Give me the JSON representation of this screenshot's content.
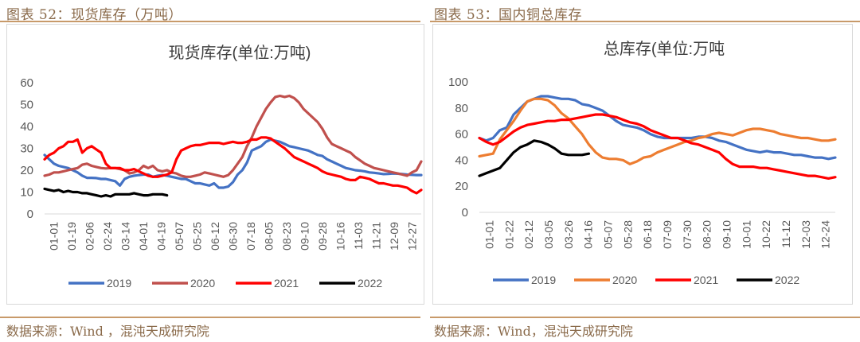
{
  "left": {
    "caption": "图表 52：现货库存（万吨）",
    "source": "数据来源：Wind ，混沌天成研究院",
    "chart_data": {
      "type": "line",
      "title": "现货库存(单位:万吨)",
      "ylim": [
        0,
        60
      ],
      "yticks": [
        0,
        10,
        20,
        30,
        40,
        50,
        60
      ],
      "x_labels": [
        "01-01",
        "01-19",
        "02-06",
        "02-24",
        "03-14",
        "04-01",
        "04-19",
        "05-07",
        "05-25",
        "06-12",
        "06-30",
        "07-18",
        "08-05",
        "08-23",
        "09-10",
        "09-28",
        "10-16",
        "11-03",
        "11-21",
        "12-09",
        "12-27"
      ],
      "grid": false,
      "legend_position": "bottom",
      "series": [
        {
          "name": "2019",
          "color": "#4472c4",
          "x": [
            0,
            1,
            2,
            3,
            4,
            5,
            6,
            7,
            8,
            9,
            10,
            11,
            12,
            13,
            14,
            15,
            16,
            17,
            18,
            19,
            20,
            21,
            22,
            23,
            24,
            25,
            26,
            27,
            28,
            29,
            30,
            31,
            32,
            33,
            34,
            35,
            36,
            37,
            38,
            39,
            40,
            41,
            42,
            43,
            44,
            45,
            46,
            47,
            48,
            49,
            50,
            51,
            52,
            53,
            54,
            55,
            56,
            57,
            58,
            59,
            60,
            61,
            62,
            63,
            64,
            65,
            66,
            67,
            68,
            69,
            70,
            71,
            72,
            73,
            74,
            75,
            76,
            77,
            78,
            79,
            80
          ],
          "values": [
            27,
            25,
            23,
            22,
            21.5,
            21,
            20,
            19,
            17.5,
            16.5,
            16.5,
            16.4,
            16,
            16,
            15.5,
            15,
            13,
            16,
            17,
            17.5,
            17.8,
            18,
            18,
            17,
            17.5,
            17.8,
            17.5,
            17,
            16.5,
            16,
            16,
            15,
            14,
            14,
            13.5,
            13,
            14,
            12,
            12,
            12.5,
            14.5,
            18,
            20,
            23.5,
            29,
            30,
            31,
            33,
            34,
            33.5,
            33,
            32,
            31,
            30.5,
            30,
            29.5,
            29,
            28,
            27,
            26.5,
            25,
            24,
            23,
            22,
            21,
            20.5,
            20,
            19.8,
            19.5,
            19,
            18.8,
            18.5,
            18.2,
            18.3,
            18.5,
            18.4,
            18.2,
            18,
            17.9,
            17.8,
            17.8
          ]
        },
        {
          "name": "2020",
          "color": "#c0504d",
          "x": [
            0,
            1,
            2,
            3,
            4,
            5,
            6,
            7,
            8,
            9,
            10,
            11,
            12,
            13,
            14,
            15,
            16,
            17,
            18,
            19,
            20,
            21,
            22,
            23,
            24,
            25,
            26,
            27,
            28,
            29,
            30,
            31,
            32,
            33,
            34,
            35,
            36,
            37,
            38,
            39,
            40,
            41,
            42,
            43,
            44,
            45,
            46,
            47,
            48,
            49,
            50,
            51,
            52,
            53,
            54,
            55,
            56,
            57,
            58,
            59,
            60,
            61,
            62,
            63,
            64,
            65,
            66,
            67,
            68,
            69,
            70,
            71,
            72,
            73,
            74,
            75,
            76,
            77,
            78,
            79,
            80
          ],
          "values": [
            17.5,
            18,
            19,
            19,
            19.5,
            20,
            20.5,
            21,
            22.5,
            23,
            22,
            21.5,
            21,
            20.8,
            21,
            21,
            20.5,
            20,
            18.5,
            19,
            20,
            22,
            21,
            22,
            20,
            19.5,
            20,
            19,
            18.5,
            17.5,
            17,
            17,
            17.5,
            18,
            19,
            18.5,
            18,
            17.5,
            17,
            17.8,
            20,
            23,
            26,
            31,
            35,
            40,
            44,
            48,
            51,
            53.5,
            54,
            53.5,
            54,
            53,
            51,
            48,
            46,
            44,
            42,
            39,
            35,
            32,
            31,
            30,
            29,
            28,
            26,
            24.5,
            23,
            22,
            21,
            20.5,
            20,
            19.5,
            19,
            18.5,
            18,
            17.5,
            19,
            20,
            24
          ]
        },
        {
          "name": "2021",
          "color": "#ff0000",
          "x": [
            0,
            1,
            2,
            3,
            4,
            5,
            6,
            7,
            8,
            9,
            10,
            11,
            12,
            13,
            14,
            15,
            16,
            17,
            18,
            19,
            20,
            21,
            22,
            23,
            24,
            25,
            26,
            27,
            28,
            29,
            30,
            31,
            32,
            33,
            34,
            35,
            36,
            37,
            38,
            39,
            40,
            41,
            42,
            43,
            44,
            45,
            46,
            47,
            48,
            49,
            50,
            51,
            52,
            53,
            54,
            55,
            56,
            57,
            58,
            59,
            60,
            61,
            62,
            63,
            64,
            65,
            66,
            67,
            68,
            69,
            70,
            71,
            72,
            73,
            74,
            75,
            76,
            77,
            78,
            79,
            80
          ],
          "values": [
            25,
            27,
            28,
            30,
            31,
            33,
            33,
            34,
            28,
            30,
            31,
            29.5,
            28,
            23,
            21,
            21,
            21,
            20,
            20,
            20.5,
            19.5,
            18.5,
            17.5,
            17,
            17,
            17.5,
            18,
            19,
            25,
            29,
            30,
            31,
            31.5,
            31.5,
            32,
            32.5,
            32.5,
            32.5,
            32,
            32.5,
            33,
            32.5,
            32.5,
            33,
            34,
            34,
            35,
            35,
            34.5,
            33,
            31.5,
            30,
            28,
            26,
            25,
            24,
            23,
            22,
            21,
            19.5,
            18.5,
            18,
            17.5,
            17,
            16,
            15.5,
            15.5,
            17,
            16.5,
            16,
            15,
            14,
            14,
            13.5,
            13,
            13,
            12.5,
            12,
            10.5,
            9.5,
            11
          ]
        },
        {
          "name": "2022",
          "color": "#000000",
          "x": [
            0,
            1,
            2,
            3,
            4,
            5,
            6,
            7,
            8,
            9,
            10,
            11,
            12,
            13,
            14,
            15,
            16,
            17,
            18,
            19,
            20,
            21,
            22,
            23,
            24,
            25,
            26
          ],
          "values": [
            11.5,
            11,
            10.5,
            11,
            10,
            10.5,
            10,
            10,
            9.5,
            9.5,
            9,
            8.5,
            8,
            8.5,
            8,
            9,
            9,
            9,
            9,
            9.5,
            9,
            8.5,
            8.5,
            9,
            9,
            9,
            8.5
          ]
        }
      ]
    }
  },
  "right": {
    "caption": "图表 53：国内铜总库存",
    "source": "数据来源：Wind，混沌天成研究院",
    "chart_data": {
      "type": "line",
      "title": "总库存(单位:万吨",
      "ylim": [
        0,
        100
      ],
      "yticks": [
        0,
        20,
        40,
        60,
        80,
        100
      ],
      "x_labels": [
        "01-01",
        "01-22",
        "02-12",
        "03-05",
        "03-26",
        "04-16",
        "05-07",
        "05-28",
        "06-18",
        "07-09",
        "07-30",
        "08-20",
        "09-10",
        "10-01",
        "10-22",
        "11-12",
        "12-03",
        "12-24"
      ],
      "grid": false,
      "legend_position": "bottom",
      "series": [
        {
          "name": "2019",
          "color": "#4472c4",
          "x": [
            0,
            1,
            2,
            3,
            4,
            5,
            6,
            7,
            8,
            9,
            10,
            11,
            12,
            13,
            14,
            15,
            16,
            17,
            18,
            19,
            20,
            21,
            22,
            23,
            24,
            25,
            26,
            27,
            28,
            29,
            30,
            31,
            32,
            33,
            34,
            35,
            36,
            37,
            38,
            39,
            40,
            41,
            42,
            43,
            44,
            45,
            46,
            47,
            48,
            49,
            50,
            51,
            52
          ],
          "values": [
            57,
            55,
            57,
            63,
            65,
            75,
            80,
            85,
            87,
            89,
            89,
            88,
            87,
            87,
            86,
            83,
            82,
            80,
            78,
            74,
            70,
            67,
            66,
            65,
            63,
            60,
            58,
            57,
            57,
            57,
            57,
            57,
            58,
            58,
            57,
            55,
            54,
            52,
            50,
            48,
            47,
            46,
            47,
            46,
            46,
            45,
            44,
            44,
            43,
            42,
            42,
            41,
            42
          ]
        },
        {
          "name": "2020",
          "color": "#ed7d31",
          "x": [
            0,
            1,
            2,
            3,
            4,
            5,
            6,
            7,
            8,
            9,
            10,
            11,
            12,
            13,
            14,
            15,
            16,
            17,
            18,
            19,
            20,
            21,
            22,
            23,
            24,
            25,
            26,
            27,
            28,
            29,
            30,
            31,
            32,
            33,
            34,
            35,
            36,
            37,
            38,
            39,
            40,
            41,
            42,
            43,
            44,
            45,
            46,
            47,
            48,
            49,
            50,
            51,
            52
          ],
          "values": [
            43,
            44,
            45,
            56,
            63,
            70,
            78,
            85,
            87,
            87,
            86,
            82,
            76,
            72,
            66,
            60,
            52,
            46,
            42,
            41,
            41,
            40,
            37,
            39,
            42,
            43,
            46,
            48,
            50,
            52,
            54,
            55,
            57,
            58,
            60,
            61,
            60,
            59,
            61,
            63,
            64,
            64,
            63,
            62,
            60,
            59,
            58,
            57,
            57,
            56,
            55,
            55,
            56
          ]
        },
        {
          "name": "2021",
          "color": "#ff0000",
          "x": [
            0,
            1,
            2,
            3,
            4,
            5,
            6,
            7,
            8,
            9,
            10,
            11,
            12,
            13,
            14,
            15,
            16,
            17,
            18,
            19,
            20,
            21,
            22,
            23,
            24,
            25,
            26,
            27,
            28,
            29,
            30,
            31,
            32,
            33,
            34,
            35,
            36,
            37,
            38,
            39,
            40,
            41,
            42,
            43,
            44,
            45,
            46,
            47,
            48,
            49,
            50,
            51,
            52
          ],
          "values": [
            57,
            54,
            52,
            54,
            58,
            62,
            65,
            67,
            68,
            69,
            70,
            70,
            71,
            71,
            72,
            73,
            74,
            75,
            75,
            74,
            73,
            71,
            69,
            68,
            66,
            63,
            61,
            59,
            57,
            57,
            55,
            53,
            52,
            50,
            48,
            46,
            41,
            37,
            35,
            35,
            35,
            34,
            34,
            33,
            32,
            31,
            30,
            29,
            28,
            28,
            27,
            26,
            27
          ]
        },
        {
          "name": "2022",
          "color": "#000000",
          "x": [
            0,
            1,
            2,
            3,
            4,
            5,
            6,
            7,
            8,
            9,
            10,
            11,
            12,
            13,
            14,
            15,
            16
          ],
          "values": [
            28,
            30,
            32,
            34,
            40,
            46,
            50,
            52,
            55,
            54,
            52,
            49,
            45,
            44,
            44,
            44,
            45
          ]
        }
      ]
    }
  }
}
